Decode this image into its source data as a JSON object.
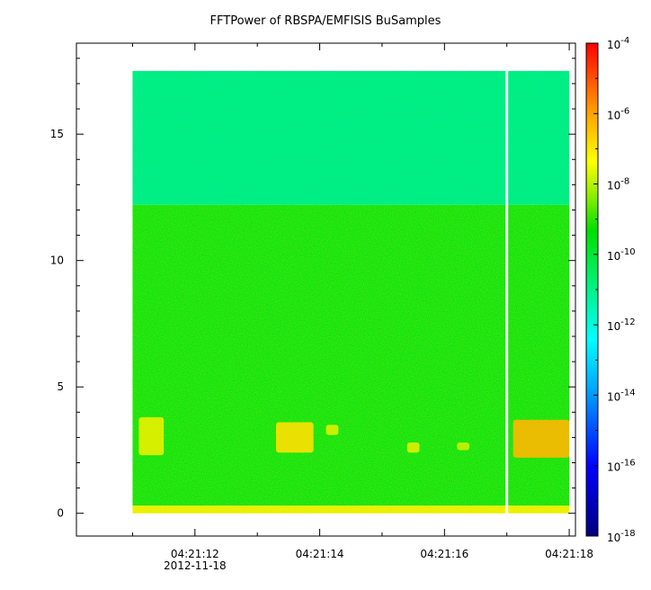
{
  "chart_data": {
    "type": "heatmap",
    "title": "FFTPower of RBSPA/EMFISIS  BuSamples",
    "xlabel": "",
    "ylabel": "",
    "x_date_label": "2012-11-18",
    "x_ticks": [
      "04:21:12",
      "04:21:14",
      "04:21:16",
      "04:21:18"
    ],
    "x_range": [
      "04:21:10.1",
      "04:21:18.1"
    ],
    "data_x_range": [
      "04:21:11.0",
      "04:21:18.0"
    ],
    "gap_at": "04:21:17.0",
    "y_ticks": [
      0,
      5,
      10,
      15
    ],
    "ylim": [
      -0.9,
      18.6
    ],
    "data_y_range": [
      0,
      17.5
    ],
    "colorbar": {
      "scale": "log",
      "range": [
        1e-18,
        0.0001
      ],
      "tick_labels": [
        {
          "base": "10",
          "exp": "-4",
          "value": -4
        },
        {
          "base": "10",
          "exp": "-6",
          "value": -6
        },
        {
          "base": "10",
          "exp": "-8",
          "value": -8
        },
        {
          "base": "10",
          "exp": "-10",
          "value": -10
        },
        {
          "base": "10",
          "exp": "-12",
          "value": -12
        },
        {
          "base": "10",
          "exp": "-14",
          "value": -14
        },
        {
          "base": "10",
          "exp": "-16",
          "value": -16
        },
        {
          "base": "10",
          "exp": "-18",
          "value": -18
        }
      ]
    },
    "bands": [
      {
        "y0": 12.2,
        "y1": 17.5,
        "log_power": -12.3
      },
      {
        "y0": 0.3,
        "y1": 12.2,
        "log_power": -10.3
      },
      {
        "y0": 0,
        "y1": 0.3,
        "log_power": -8.2
      }
    ],
    "bursts": [
      {
        "x0": "04:21:11.1",
        "x1": "04:21:11.5",
        "y0": 2.3,
        "y1": 3.8,
        "log_power": -8.2
      },
      {
        "x0": "04:21:13.3",
        "x1": "04:21:13.9",
        "y0": 2.4,
        "y1": 3.6,
        "log_power": -7.8
      },
      {
        "x0": "04:21:14.1",
        "x1": "04:21:14.3",
        "y0": 3.1,
        "y1": 3.5,
        "log_power": -8.3
      },
      {
        "x0": "04:21:15.4",
        "x1": "04:21:15.6",
        "y0": 2.4,
        "y1": 2.8,
        "log_power": -8.3
      },
      {
        "x0": "04:21:16.2",
        "x1": "04:21:16.4",
        "y0": 2.5,
        "y1": 2.8,
        "log_power": -8.5
      },
      {
        "x0": "04:21:17.1",
        "x1": "04:21:18.0",
        "y0": 2.2,
        "y1": 3.7,
        "log_power": -7.3
      }
    ]
  }
}
